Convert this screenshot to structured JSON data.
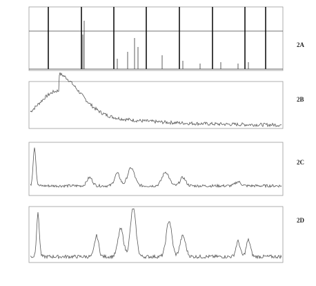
{
  "panels": [
    {
      "label": "2A"
    },
    {
      "label": "2B"
    },
    {
      "label": "2C"
    },
    {
      "label": "2D"
    }
  ]
}
